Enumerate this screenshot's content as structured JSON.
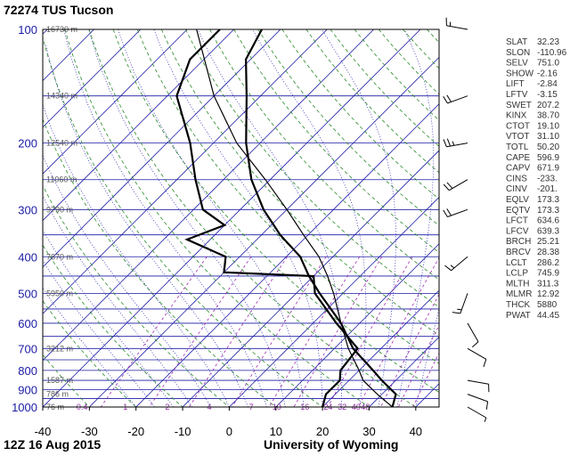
{
  "chart_data": {
    "type": "line",
    "title": "72274 TUS Tucson",
    "footer_left": "12Z 16 Aug 2015",
    "footer_right": "University of Wyoming",
    "xlim": [
      -40,
      45
    ],
    "pressure_range_hPa": [
      1000,
      100
    ],
    "y_log_scale": true,
    "pressure_ticks": [
      100,
      200,
      300,
      400,
      500,
      600,
      700,
      800,
      900,
      1000
    ],
    "temp_ticks": [
      -40,
      -30,
      -20,
      -10,
      0,
      10,
      20,
      30,
      40
    ],
    "height_labels": [
      {
        "p": 100,
        "label": "16730 m"
      },
      {
        "p": 150,
        "label": "14340 m"
      },
      {
        "p": 200,
        "label": "12540 m"
      },
      {
        "p": 250,
        "label": "11060 m"
      },
      {
        "p": 300,
        "label": "9790 m"
      },
      {
        "p": 400,
        "label": "7670 m"
      },
      {
        "p": 500,
        "label": "5950 m"
      },
      {
        "p": 700,
        "label": "3212 m"
      },
      {
        "p": 850,
        "label": "1587 m"
      },
      {
        "p": 925,
        "label": "786 m"
      },
      {
        "p": 1000,
        "label": "76 m"
      }
    ],
    "mixing_ratio_labels": [
      {
        "value": "0.4",
        "t": -32
      },
      {
        "value": "1",
        "t": -22
      },
      {
        "value": "2",
        "t": -13
      },
      {
        "value": "4",
        "t": -4
      },
      {
        "value": "7",
        "t": 5
      },
      {
        "value": "10",
        "t": 10
      },
      {
        "value": "16",
        "t": 16
      },
      {
        "value": "24",
        "t": 21
      },
      {
        "value": "32",
        "t": 24
      },
      {
        "value": "40",
        "t": 27
      },
      {
        "value": "48",
        "t": 29
      }
    ],
    "series": [
      {
        "name": "Temperature",
        "points": [
          [
            1000,
            35
          ],
          [
            925,
            33
          ],
          [
            850,
            27
          ],
          [
            800,
            23
          ],
          [
            700,
            14
          ],
          [
            600,
            6
          ],
          [
            500,
            -5
          ],
          [
            450,
            -11
          ],
          [
            400,
            -17
          ],
          [
            350,
            -26
          ],
          [
            300,
            -35
          ],
          [
            250,
            -44
          ],
          [
            200,
            -53
          ],
          [
            150,
            -63
          ],
          [
            120,
            -71
          ],
          [
            100,
            -74
          ]
        ]
      },
      {
        "name": "Dew point",
        "points": [
          [
            1000,
            20
          ],
          [
            925,
            18
          ],
          [
            850,
            18
          ],
          [
            800,
            16
          ],
          [
            700,
            15
          ],
          [
            600,
            5
          ],
          [
            500,
            -6
          ],
          [
            450,
            -10
          ],
          [
            440,
            -30
          ],
          [
            400,
            -33
          ],
          [
            360,
            -45
          ],
          [
            330,
            -40
          ],
          [
            300,
            -48
          ],
          [
            250,
            -56
          ],
          [
            200,
            -65
          ],
          [
            150,
            -78
          ],
          [
            120,
            -83
          ],
          [
            100,
            -83
          ]
        ]
      },
      {
        "name": "Parcel",
        "points": [
          [
            1000,
            35
          ],
          [
            925,
            29
          ],
          [
            850,
            23
          ],
          [
            800,
            20
          ],
          [
            700,
            13
          ],
          [
            600,
            6
          ],
          [
            500,
            -2
          ],
          [
            450,
            -7
          ],
          [
            400,
            -13
          ],
          [
            350,
            -21
          ],
          [
            300,
            -30
          ],
          [
            250,
            -41
          ],
          [
            200,
            -55
          ],
          [
            150,
            -70
          ],
          [
            100,
            -88
          ]
        ]
      }
    ],
    "wind_barbs": [
      {
        "p": 1000,
        "dir": 120,
        "spd": 5
      },
      {
        "p": 925,
        "dir": 110,
        "spd": 10
      },
      {
        "p": 850,
        "dir": 100,
        "spd": 10
      },
      {
        "p": 700,
        "dir": 120,
        "spd": 10
      },
      {
        "p": 600,
        "dir": 150,
        "spd": 10
      },
      {
        "p": 500,
        "dir": 200,
        "spd": 15
      },
      {
        "p": 400,
        "dir": 230,
        "spd": 15
      },
      {
        "p": 300,
        "dir": 250,
        "spd": 20
      },
      {
        "p": 250,
        "dir": 240,
        "spd": 20
      },
      {
        "p": 200,
        "dir": 260,
        "spd": 25
      },
      {
        "p": 150,
        "dir": 250,
        "spd": 20
      },
      {
        "p": 100,
        "dir": 280,
        "spd": 15
      }
    ]
  },
  "indices": [
    {
      "name": "SLAT",
      "value": "32.23"
    },
    {
      "name": "SLON",
      "value": "-110.96"
    },
    {
      "name": "SELV",
      "value": "751.0"
    },
    {
      "name": "SHOW",
      "value": "-2.16"
    },
    {
      "name": "LIFT",
      "value": "-2.84"
    },
    {
      "name": "LFTV",
      "value": "-3.15"
    },
    {
      "name": "SWET",
      "value": "207.2"
    },
    {
      "name": "KINX",
      "value": "38.70"
    },
    {
      "name": "CTOT",
      "value": "19.10"
    },
    {
      "name": "VTOT",
      "value": "31.10"
    },
    {
      "name": "TOTL",
      "value": "50.20"
    },
    {
      "name": "CAPE",
      "value": "596.9"
    },
    {
      "name": "CAPV",
      "value": "671.9"
    },
    {
      "name": "CINS",
      "value": "-233."
    },
    {
      "name": "CINV",
      "value": "-201."
    },
    {
      "name": "EQLV",
      "value": "173.3"
    },
    {
      "name": "EQTV",
      "value": "173.3"
    },
    {
      "name": "LFCT",
      "value": "634.6"
    },
    {
      "name": "LFCV",
      "value": "639.3"
    },
    {
      "name": "BRCH",
      "value": "25.21"
    },
    {
      "name": "BRCV",
      "value": "28.38"
    },
    {
      "name": "LCLT",
      "value": "286.2"
    },
    {
      "name": "LCLP",
      "value": "745.9"
    },
    {
      "name": "MLTH",
      "value": "311.3"
    },
    {
      "name": "MLMR",
      "value": "12.92"
    },
    {
      "name": "THCK",
      "value": "5880"
    },
    {
      "name": "PWAT",
      "value": "44.45"
    }
  ],
  "colors": {
    "isobar": "#1a1aa6",
    "isotherm": "#1a1aa6",
    "dry_adiabat": "#2a8a2a",
    "moist_adiabat": "#1a1aa6",
    "mixing_ratio": "#a02ab0",
    "sounding": "#000000",
    "parcel": "#000000"
  }
}
